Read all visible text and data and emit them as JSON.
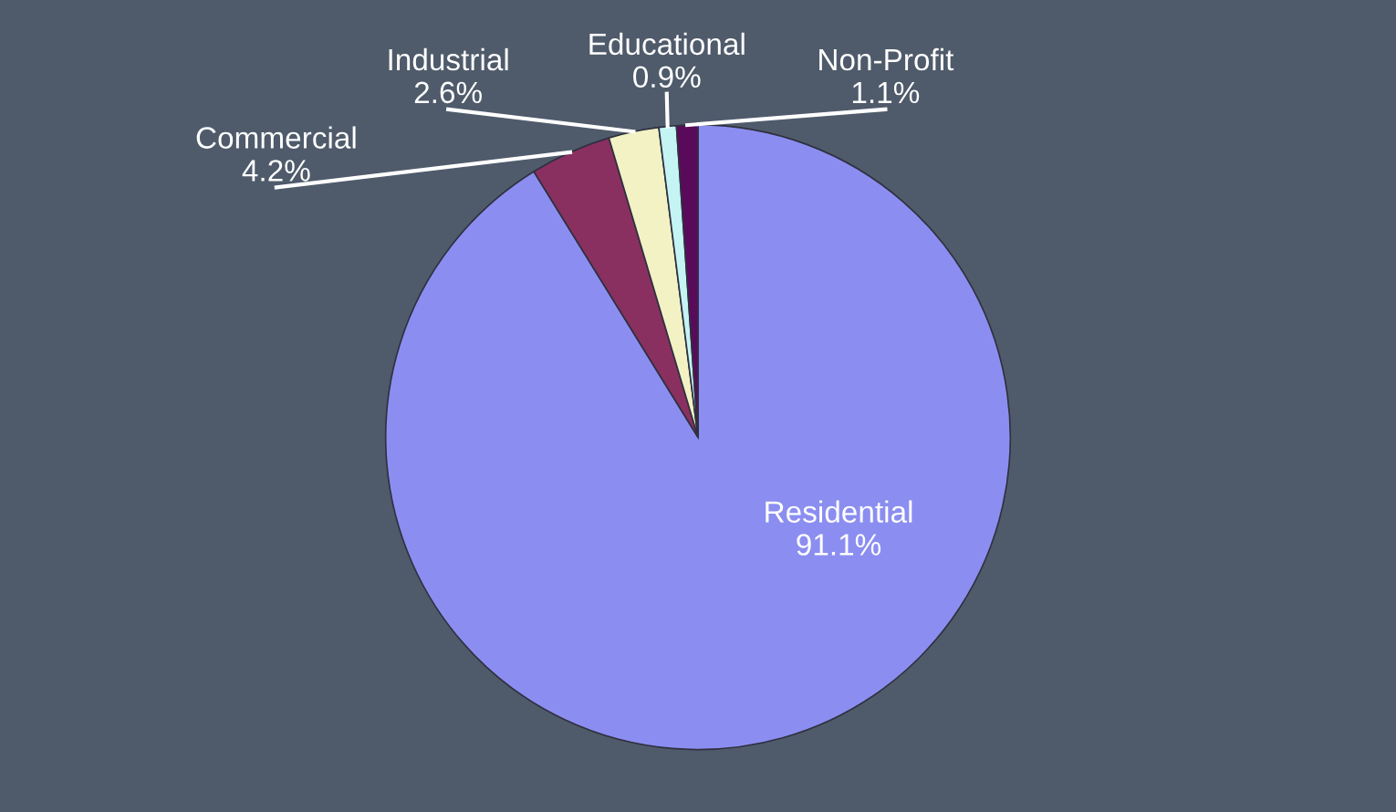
{
  "chart_data": {
    "type": "pie",
    "categories": [
      "Residential",
      "Commercial",
      "Industrial",
      "Educational",
      "Non-Profit"
    ],
    "values": [
      91.1,
      4.2,
      2.6,
      0.9,
      1.1
    ],
    "value_labels": [
      "91.1%",
      "4.2%",
      "2.6%",
      "0.9%",
      "1.1%"
    ],
    "colors": [
      "#8b8ef0",
      "#8a3060",
      "#f2f2c4",
      "#c4f4f4",
      "#5a0a5a"
    ],
    "legend": false
  }
}
